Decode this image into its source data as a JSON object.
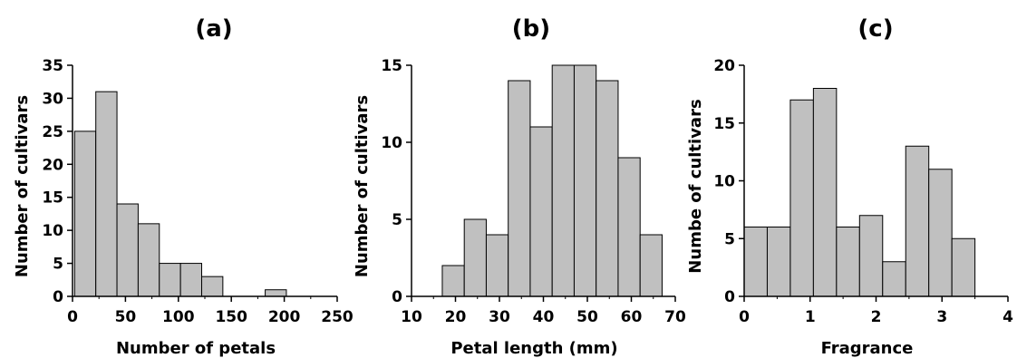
{
  "chart_data": [
    {
      "type": "bar",
      "title": "(a)",
      "xlabel": "Number of petals",
      "ylabel": "Number of cultivars",
      "xlim": [
        0,
        250
      ],
      "ylim": [
        0,
        35
      ],
      "xticks": [
        0,
        50,
        100,
        150,
        200,
        250
      ],
      "yticks": [
        0,
        5,
        10,
        15,
        20,
        25,
        30,
        35
      ],
      "bin_width": 20,
      "bins": [
        {
          "start": 2,
          "value": 25
        },
        {
          "start": 22,
          "value": 31
        },
        {
          "start": 42,
          "value": 14
        },
        {
          "start": 62,
          "value": 11
        },
        {
          "start": 82,
          "value": 5
        },
        {
          "start": 102,
          "value": 5
        },
        {
          "start": 122,
          "value": 3
        },
        {
          "start": 142,
          "value": 0
        },
        {
          "start": 162,
          "value": 0
        },
        {
          "start": 182,
          "value": 1
        },
        {
          "start": 202,
          "value": 0
        },
        {
          "start": 222,
          "value": 0
        }
      ],
      "colors": {
        "bar": "#c0c0c0"
      },
      "grid": false
    },
    {
      "type": "bar",
      "title": "(b)",
      "xlabel": "Petal length (mm)",
      "ylabel": "Number of cultivars",
      "xlim": [
        10,
        70
      ],
      "ylim": [
        0,
        15
      ],
      "xticks": [
        10,
        20,
        30,
        40,
        50,
        60,
        70
      ],
      "yticks": [
        0,
        5,
        10,
        15
      ],
      "bin_width": 5,
      "bins": [
        {
          "start": 12,
          "value": 0
        },
        {
          "start": 17,
          "value": 2
        },
        {
          "start": 22,
          "value": 5
        },
        {
          "start": 27,
          "value": 4
        },
        {
          "start": 32,
          "value": 14
        },
        {
          "start": 37,
          "value": 11
        },
        {
          "start": 42,
          "value": 15
        },
        {
          "start": 47,
          "value": 15
        },
        {
          "start": 52,
          "value": 14
        },
        {
          "start": 57,
          "value": 9
        },
        {
          "start": 62,
          "value": 4
        }
      ],
      "colors": {
        "bar": "#c0c0c0"
      },
      "grid": false
    },
    {
      "type": "bar",
      "title": "(c)",
      "xlabel": "Fragrance",
      "ylabel": "Numbe of cultivars",
      "xlim": [
        0,
        4
      ],
      "ylim": [
        0,
        20
      ],
      "xticks": [
        0,
        1,
        2,
        3,
        4
      ],
      "yticks": [
        0,
        5,
        10,
        15,
        20
      ],
      "bin_width": 0.35,
      "bins": [
        {
          "start": 0.0,
          "value": 6
        },
        {
          "start": 0.35,
          "value": 6
        },
        {
          "start": 0.7,
          "value": 17
        },
        {
          "start": 1.05,
          "value": 18
        },
        {
          "start": 1.4,
          "value": 6
        },
        {
          "start": 1.75,
          "value": 7
        },
        {
          "start": 2.1,
          "value": 3
        },
        {
          "start": 2.45,
          "value": 13
        },
        {
          "start": 2.8,
          "value": 11
        },
        {
          "start": 3.15,
          "value": 5
        }
      ],
      "colors": {
        "bar": "#c0c0c0"
      },
      "grid": false
    }
  ]
}
